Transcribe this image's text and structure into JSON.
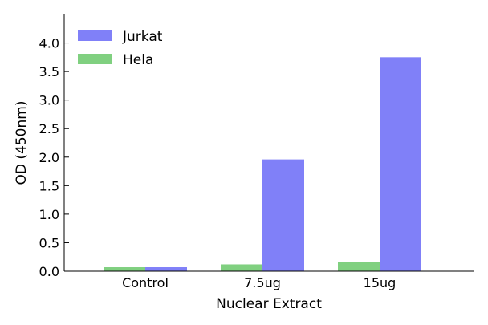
{
  "chart_data": {
    "type": "bar",
    "xlabel": "Nuclear Extract",
    "ylabel": "OD (450nm)",
    "categories": [
      "Control",
      "7.5ug",
      "15ug"
    ],
    "ylim": [
      0,
      4.5
    ],
    "yticks": [
      "0.0",
      "0.5",
      "1.0",
      "1.5",
      "2.0",
      "2.5",
      "3.0",
      "3.5",
      "4.0"
    ],
    "legend_position": "top-left",
    "grid": false,
    "series": [
      {
        "name": "Hela",
        "color": "#80d080",
        "values": [
          0.07,
          0.12,
          0.16
        ]
      },
      {
        "name": "Jurkat",
        "color": "#8080f8",
        "values": [
          0.07,
          1.96,
          3.75
        ]
      }
    ],
    "legend_order": [
      "Jurkat",
      "Hela"
    ]
  }
}
